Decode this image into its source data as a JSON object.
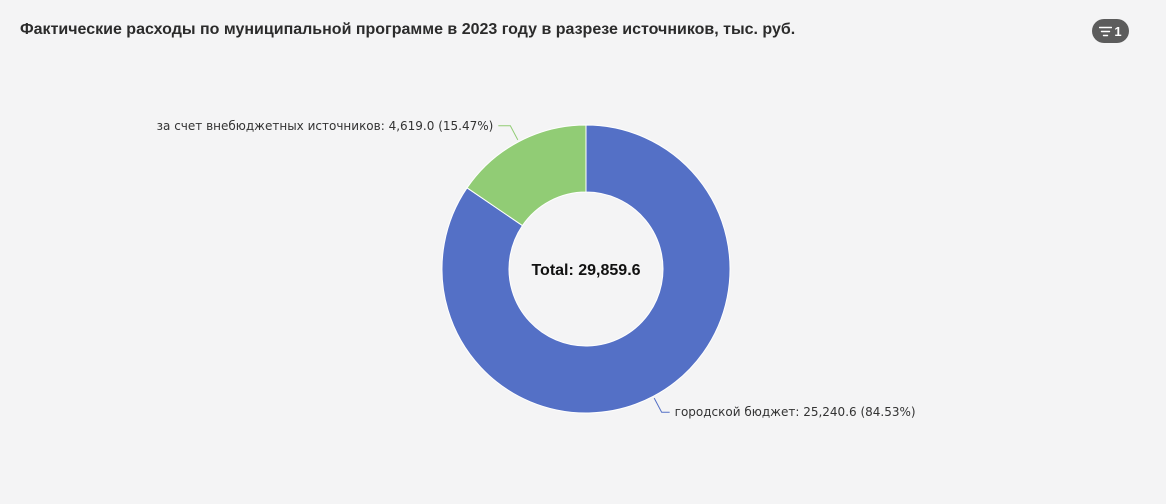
{
  "header": {
    "title": "Фактические расходы по муниципальной программе в 2023 году в разрезе источников, тыс. руб.",
    "filter_count": "1"
  },
  "chart_data": {
    "type": "pie",
    "donut": true,
    "center_label": "Total: 29,859.6",
    "slices": [
      {
        "name": "городской бюджет",
        "value": 25240.6,
        "percent": 84.53,
        "color": "#5470c6",
        "label": "городской бюджет: 25,240.6 (84.53%)"
      },
      {
        "name": "за счет внебюджетных источников",
        "value": 4619.0,
        "percent": 15.47,
        "color": "#91cc75",
        "label": "за счет внебюджетных источников: 4,619.0 (15.47%)"
      }
    ]
  }
}
